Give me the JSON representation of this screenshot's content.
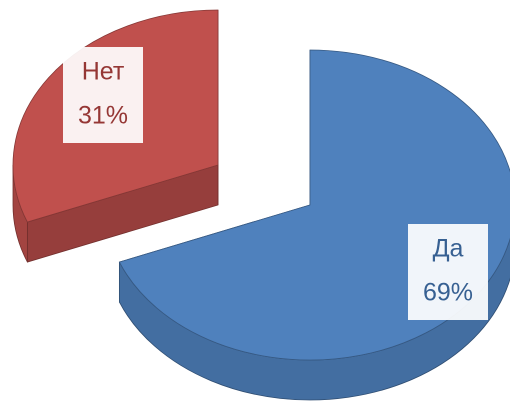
{
  "chart_data": {
    "type": "pie",
    "categories": [
      "Да",
      "Нет"
    ],
    "values": [
      69,
      31
    ],
    "value_labels": [
      "69%",
      "31%"
    ],
    "colors": [
      "#4f81bd",
      "#c0504d"
    ],
    "label_colors": [
      "#376092",
      "#953735"
    ]
  }
}
